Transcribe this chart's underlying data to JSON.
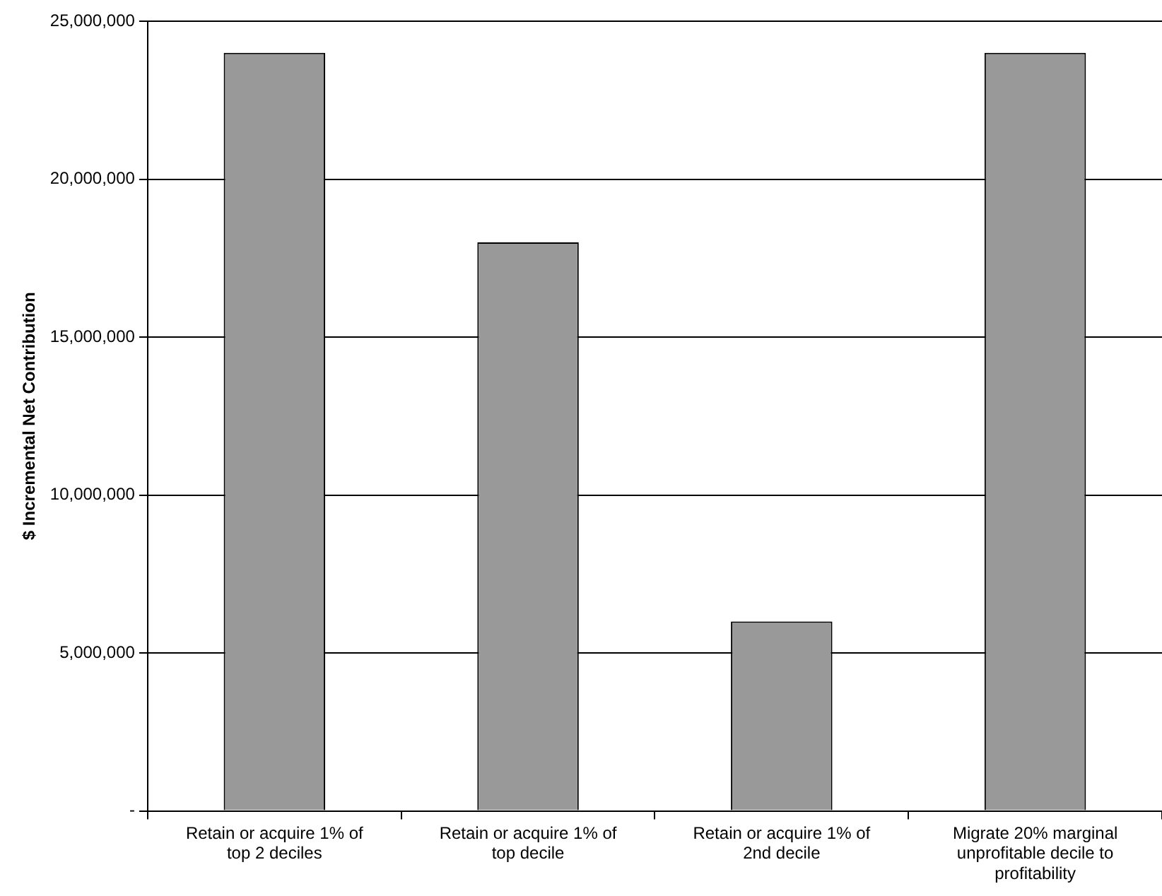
{
  "chart_data": {
    "type": "bar",
    "ylabel": "$ Incremental Net Contribution",
    "categories": [
      "Retain or acquire 1% of top 2 deciles",
      "Retain or acquire 1% of top decile",
      "Retain or acquire 1% of 2nd decile",
      "Migrate 20% marginal unprofitable decile to profitability"
    ],
    "values": [
      24000000,
      18000000,
      6000000,
      24000000
    ],
    "color": "#999999",
    "ylim": [
      0,
      25000000
    ],
    "yticks": [
      {
        "value": 0,
        "label": "-"
      },
      {
        "value": 5000000,
        "label": "5,000,000"
      },
      {
        "value": 10000000,
        "label": "10,000,000"
      },
      {
        "value": 15000000,
        "label": "15,000,000"
      },
      {
        "value": 20000000,
        "label": "20,000,000"
      },
      {
        "value": 25000000,
        "label": "25,000,000"
      }
    ],
    "grid": "y",
    "legend": false
  }
}
